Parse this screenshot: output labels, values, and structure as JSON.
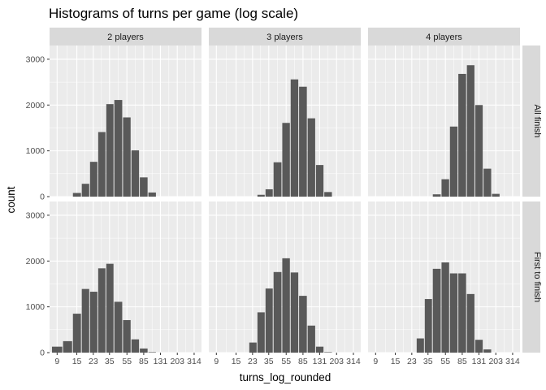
{
  "chart_data": {
    "type": "bar",
    "title": "Histograms of turns per game (log scale)",
    "xlabel": "turns_log_rounded",
    "ylabel": "count",
    "ylim": [
      0,
      3300
    ],
    "y_ticks": [
      0,
      1000,
      2000,
      3000
    ],
    "x_ticks": [
      "9",
      "15",
      "23",
      "35",
      "55",
      "85",
      "131",
      "203",
      "314"
    ],
    "x_tick_positions": [
      9,
      15,
      23,
      35,
      55,
      85,
      131,
      203,
      314
    ],
    "bar_centers": [
      9,
      12,
      15,
      19,
      23,
      29,
      35,
      44,
      55,
      68,
      85,
      106,
      131,
      163,
      203,
      252,
      314
    ],
    "x_scale": "log",
    "grid": true,
    "column_facets": [
      "2 players",
      "3 players",
      "4 players"
    ],
    "row_facets": [
      "All finish",
      "First to finish"
    ],
    "panels": [
      {
        "col": "2 players",
        "row": "All finish",
        "values": [
          0,
          0,
          80,
          280,
          760,
          1410,
          2020,
          2110,
          1730,
          1010,
          420,
          90,
          0,
          0,
          0,
          0,
          0
        ]
      },
      {
        "col": "3 players",
        "row": "All finish",
        "values": [
          0,
          0,
          0,
          0,
          0,
          40,
          160,
          750,
          1610,
          2560,
          2400,
          1710,
          690,
          100,
          0,
          0,
          0
        ]
      },
      {
        "col": "4 players",
        "row": "All finish",
        "values": [
          0,
          0,
          0,
          0,
          0,
          0,
          0,
          50,
          380,
          1530,
          2680,
          2870,
          2000,
          610,
          60,
          0,
          0
        ]
      },
      {
        "col": "2 players",
        "row": "First to finish",
        "values": [
          130,
          250,
          850,
          1390,
          1330,
          1840,
          1940,
          1110,
          710,
          290,
          90,
          10,
          0,
          0,
          0,
          0,
          0
        ]
      },
      {
        "col": "3 players",
        "row": "First to finish",
        "values": [
          0,
          0,
          0,
          0,
          220,
          880,
          1400,
          1760,
          2060,
          1750,
          1240,
          590,
          130,
          10,
          0,
          0,
          0
        ]
      },
      {
        "col": "4 players",
        "row": "First to finish",
        "values": [
          0,
          0,
          0,
          0,
          0,
          310,
          1170,
          1830,
          1970,
          1730,
          1730,
          1280,
          280,
          70,
          0,
          0,
          0
        ]
      }
    ],
    "colors": {
      "panel_bg": "#ebebeb",
      "grid_major": "#ffffff",
      "strip_bg": "#d9d9d9",
      "bar_fill": "#595959"
    }
  }
}
